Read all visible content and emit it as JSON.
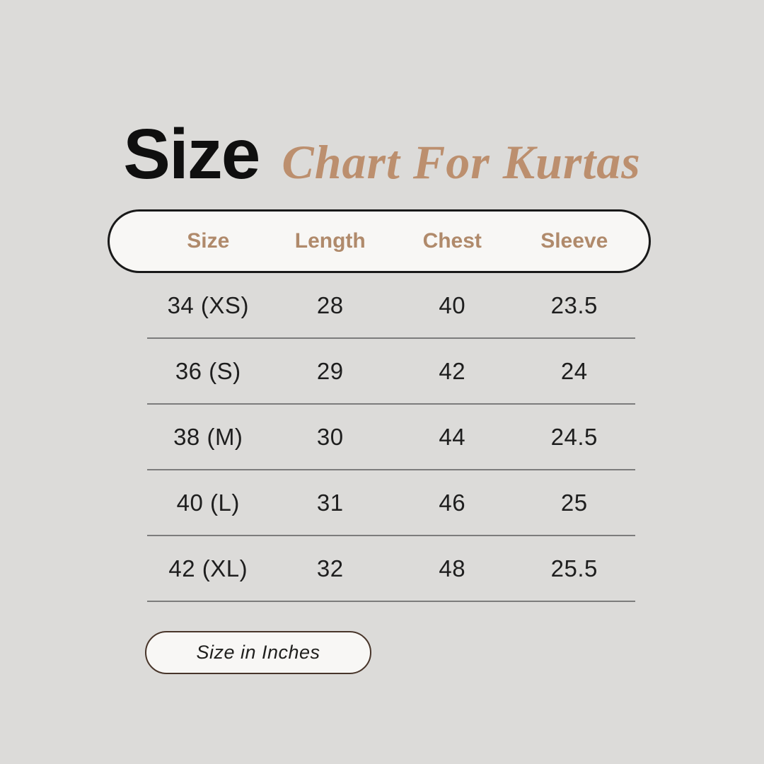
{
  "title": {
    "main": "Size",
    "script": "Chart For Kurtas"
  },
  "table": {
    "headers": [
      "Size",
      "Length",
      "Chest",
      "Sleeve"
    ],
    "rows": [
      [
        "34 (XS)",
        "28",
        "40",
        "23.5"
      ],
      [
        "36 (S)",
        "29",
        "42",
        "24"
      ],
      [
        "38 (M)",
        "30",
        "44",
        "24.5"
      ],
      [
        "40 (L)",
        "31",
        "46",
        "25"
      ],
      [
        "42 (XL)",
        "32",
        "48",
        "25.5"
      ]
    ]
  },
  "footer": {
    "note": "Size in Inches"
  },
  "colors": {
    "background": "#dcdbd9",
    "title_main": "#0f0f0f",
    "title_script": "#bc8f6e",
    "header_text": "#b08a6b",
    "pill_background": "#f8f7f5",
    "pill_border": "#191919",
    "row_text": "#1e1e1e",
    "divider": "#7c7c7c",
    "footer_pill_border": "#48352a"
  },
  "chart_data": {
    "type": "table",
    "title": "Size Chart For Kurtas",
    "columns": [
      "Size",
      "Length",
      "Chest",
      "Sleeve"
    ],
    "rows": [
      {
        "size": "34 (XS)",
        "length": 28,
        "chest": 40,
        "sleeve": 23.5
      },
      {
        "size": "36 (S)",
        "length": 29,
        "chest": 42,
        "sleeve": 24
      },
      {
        "size": "38 (M)",
        "length": 30,
        "chest": 44,
        "sleeve": 24.5
      },
      {
        "size": "40 (L)",
        "length": 31,
        "chest": 46,
        "sleeve": 25
      },
      {
        "size": "42 (XL)",
        "length": 32,
        "chest": 48,
        "sleeve": 25.5
      }
    ],
    "units": "inches"
  }
}
